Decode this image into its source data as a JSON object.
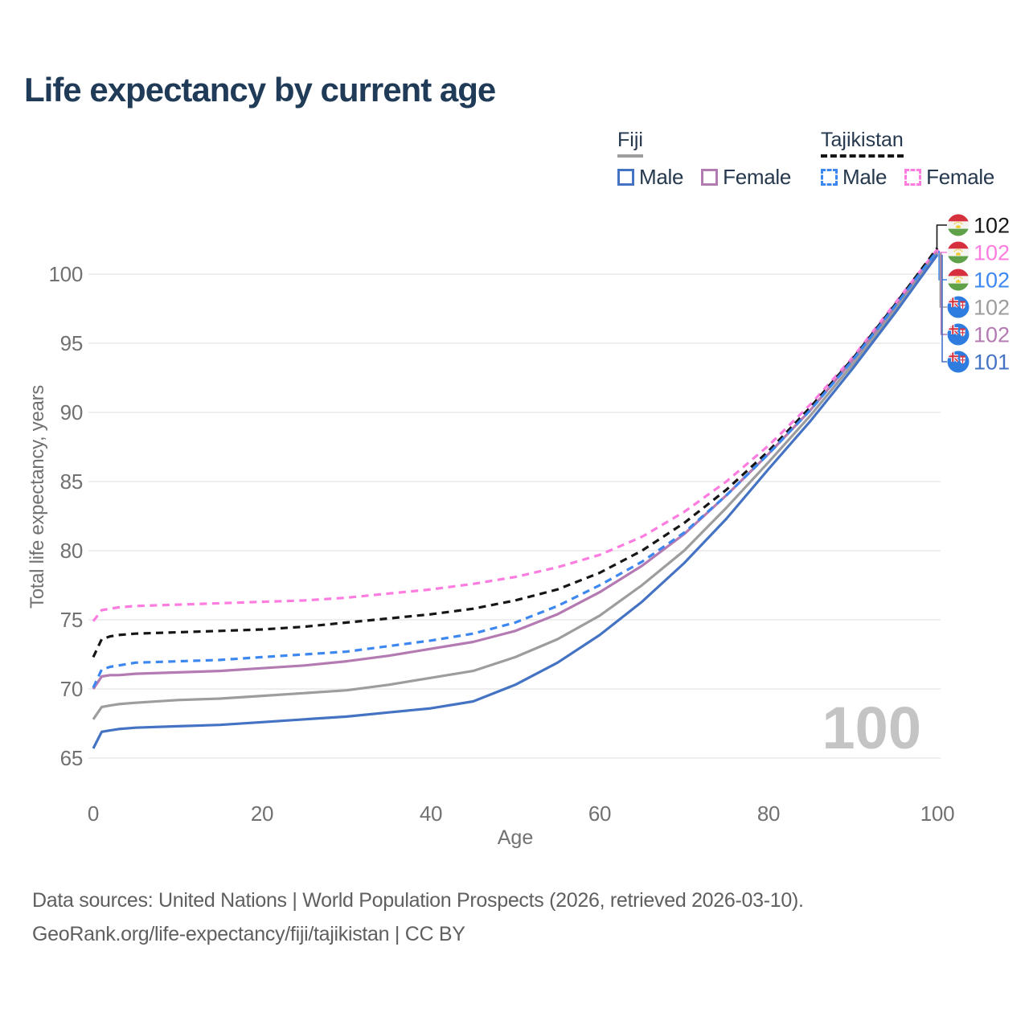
{
  "header": {
    "title": "Life expectancy by current age"
  },
  "legend": {
    "groups": [
      {
        "name": "Fiji",
        "underline_style": "solid",
        "underline_color": "#9d9d9d",
        "items": [
          {
            "label": "Male",
            "color": "#4573c4",
            "style": "solid"
          },
          {
            "label": "Female",
            "color": "#b47ab2",
            "style": "solid"
          }
        ]
      },
      {
        "name": "Tajikistan",
        "underline_style": "dashed",
        "underline_color": "#161616",
        "items": [
          {
            "label": "Male",
            "color": "#3d87f0",
            "style": "dashed"
          },
          {
            "label": "Female",
            "color": "#fc7ce0",
            "style": "dashed"
          }
        ]
      }
    ]
  },
  "chart_data": {
    "type": "line",
    "title": "Life expectancy by current age",
    "xlabel": "Age",
    "ylabel": "Total life expectancy, years",
    "xlim": [
      0,
      100
    ],
    "ylim": [
      65,
      102.5
    ],
    "xticks": [
      0,
      20,
      40,
      60,
      80,
      100
    ],
    "yticks": [
      65,
      70,
      75,
      80,
      85,
      90,
      95,
      100
    ],
    "grid": "horizontal",
    "legend_position": "top-right",
    "watermark": "100",
    "x": [
      0,
      1,
      2,
      3,
      5,
      10,
      15,
      20,
      25,
      30,
      35,
      40,
      45,
      50,
      55,
      60,
      65,
      70,
      75,
      80,
      85,
      90,
      95,
      100
    ],
    "series": [
      {
        "id": "tajikistan-female",
        "name": "Tajikistan Female",
        "color": "#fc7ce0",
        "dash": "dashed",
        "values": [
          74.9,
          75.7,
          75.8,
          75.9,
          76.0,
          76.1,
          76.2,
          76.3,
          76.4,
          76.6,
          76.9,
          77.2,
          77.6,
          78.1,
          78.8,
          79.7,
          81.0,
          82.8,
          85.0,
          87.6,
          90.6,
          94.0,
          97.9,
          101.8
        ]
      },
      {
        "id": "tajikistan-both",
        "name": "Tajikistan (both sexes)",
        "color": "#161616",
        "dash": "dashed",
        "values": [
          72.3,
          73.6,
          73.8,
          73.9,
          74.0,
          74.1,
          74.2,
          74.3,
          74.5,
          74.8,
          75.1,
          75.4,
          75.8,
          76.4,
          77.2,
          78.4,
          80.0,
          82.0,
          84.4,
          87.2,
          90.4,
          93.9,
          97.8,
          101.9
        ]
      },
      {
        "id": "fiji-female",
        "name": "Fiji Female",
        "color": "#b47ab2",
        "dash": "solid",
        "values": [
          70.0,
          70.9,
          71.0,
          71.0,
          71.1,
          71.2,
          71.3,
          71.5,
          71.7,
          72.0,
          72.4,
          72.9,
          73.4,
          74.2,
          75.4,
          77.0,
          78.9,
          81.2,
          84.0,
          87.0,
          90.2,
          93.8,
          97.6,
          101.6
        ]
      },
      {
        "id": "fiji-both",
        "name": "Fiji (both sexes)",
        "color": "#9d9d9d",
        "dash": "solid",
        "values": [
          67.8,
          68.7,
          68.8,
          68.9,
          69.0,
          69.2,
          69.3,
          69.5,
          69.7,
          69.9,
          70.3,
          70.8,
          71.3,
          72.3,
          73.6,
          75.3,
          77.5,
          80.0,
          83.1,
          86.4,
          89.8,
          93.5,
          97.4,
          101.5
        ]
      },
      {
        "id": "fiji-male",
        "name": "Fiji Male",
        "color": "#4573c4",
        "dash": "solid",
        "values": [
          65.7,
          66.9,
          67.0,
          67.1,
          67.2,
          67.3,
          67.4,
          67.6,
          67.8,
          68.0,
          68.3,
          68.6,
          69.1,
          70.3,
          71.9,
          73.9,
          76.3,
          79.1,
          82.3,
          85.9,
          89.4,
          93.2,
          97.2,
          101.4
        ]
      },
      {
        "id": "tajikistan-male",
        "name": "Tajikistan Male",
        "color": "#3d87f0",
        "dash": "dashed",
        "values": [
          70.1,
          71.4,
          71.6,
          71.7,
          71.9,
          72.0,
          72.1,
          72.3,
          72.5,
          72.7,
          73.1,
          73.5,
          74.0,
          74.8,
          76.0,
          77.5,
          79.2,
          81.3,
          84.0,
          87.0,
          90.2,
          93.8,
          97.7,
          101.7
        ]
      }
    ],
    "end_labels": [
      {
        "series": "Tajikistan (both sexes)",
        "flag": "tajikistan-flag",
        "value": "102",
        "color": "#161616",
        "line_end": 101.9
      },
      {
        "series": "Tajikistan Female",
        "flag": "tajikistan-flag",
        "value": "102",
        "color": "#fc7ce0",
        "line_end": 101.8
      },
      {
        "series": "Tajikistan Male",
        "flag": "tajikistan-flag",
        "value": "102",
        "color": "#3d87f0",
        "line_end": 101.7
      },
      {
        "series": "Fiji (both sexes)",
        "flag": "fiji-flag",
        "value": "102",
        "color": "#9d9d9d",
        "line_end": 101.5
      },
      {
        "series": "Fiji Female",
        "flag": "fiji-flag",
        "value": "102",
        "color": "#b47ab2",
        "line_end": 101.6
      },
      {
        "series": "Fiji Male",
        "flag": "fiji-flag",
        "value": "101",
        "color": "#4573c4",
        "line_end": 101.4
      }
    ]
  },
  "footer": {
    "line1": "Data sources: United Nations | World Population Prospects (2026, retrieved 2026-03-10).",
    "line2": "GeoRank.org/life-expectancy/fiji/tajikistan | CC BY"
  }
}
